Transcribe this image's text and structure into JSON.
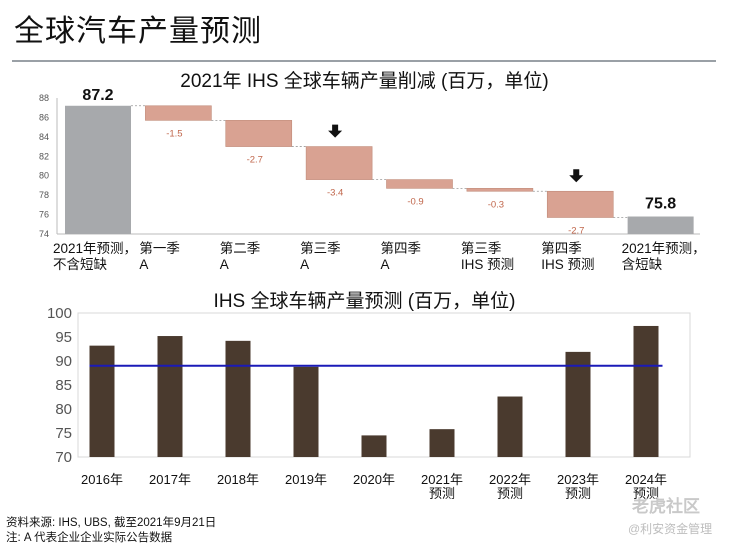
{
  "page_title": "全球汽车产量预测",
  "chart_data": [
    {
      "type": "waterfall",
      "title": "2021年 IHS 全球车辆产量削减 (百万，单位)",
      "ylim": [
        74,
        88
      ],
      "yticks": [
        "74",
        "76",
        "78",
        "80",
        "82",
        "84",
        "86",
        "88"
      ],
      "categories": [
        "2021年预测，\n不含短缺",
        "第一季\nA",
        "第二季\nA",
        "第三季\nA",
        "第四季\nA",
        "第三季\nIHS 预测",
        "第四季\nIHS 预测",
        "2021年预测，\n含短缺"
      ],
      "start_value": 87.2,
      "start_label": "87.2",
      "changes": [
        -1.5,
        -2.7,
        -3.4,
        -0.9,
        -0.3,
        -2.7
      ],
      "change_labels": [
        "-1.5",
        "-2.7",
        "-3.4",
        "-0.9",
        "-0.3",
        "-2.7"
      ],
      "end_value": 75.8,
      "end_label": "75.8",
      "arrow_markers": [
        3,
        6
      ],
      "colors": {
        "total": "#a7a9ac",
        "decrease": "#d9a292",
        "decrease_border": "#c08a78",
        "change_label": "#c0664b"
      }
    },
    {
      "type": "bar",
      "title": "IHS 全球车辆产量预测 (百万，单位)",
      "ylim": [
        70,
        100
      ],
      "yticks": [
        "70",
        "75",
        "80",
        "85",
        "90",
        "95",
        "100"
      ],
      "categories": [
        "2016年",
        "2017年",
        "2018年",
        "2019年",
        "2020年",
        "2021年\n预测",
        "2022年\n预测",
        "2023年\n预测",
        "2024年\n预测"
      ],
      "values": [
        93.2,
        95.2,
        94.2,
        88.8,
        74.5,
        75.8,
        82.6,
        91.9,
        97.3
      ],
      "reference_line": 89,
      "colors": {
        "bar": "#4a3a2e",
        "line": "#1a1ab8"
      }
    }
  ],
  "footnotes": {
    "source": "资料来源: IHS, UBS, 截至2021年9月21日",
    "note": "注: A 代表企业企业实际公告数据"
  },
  "watermark": {
    "brand": "老虎社区",
    "account": "@利安资金管理"
  }
}
